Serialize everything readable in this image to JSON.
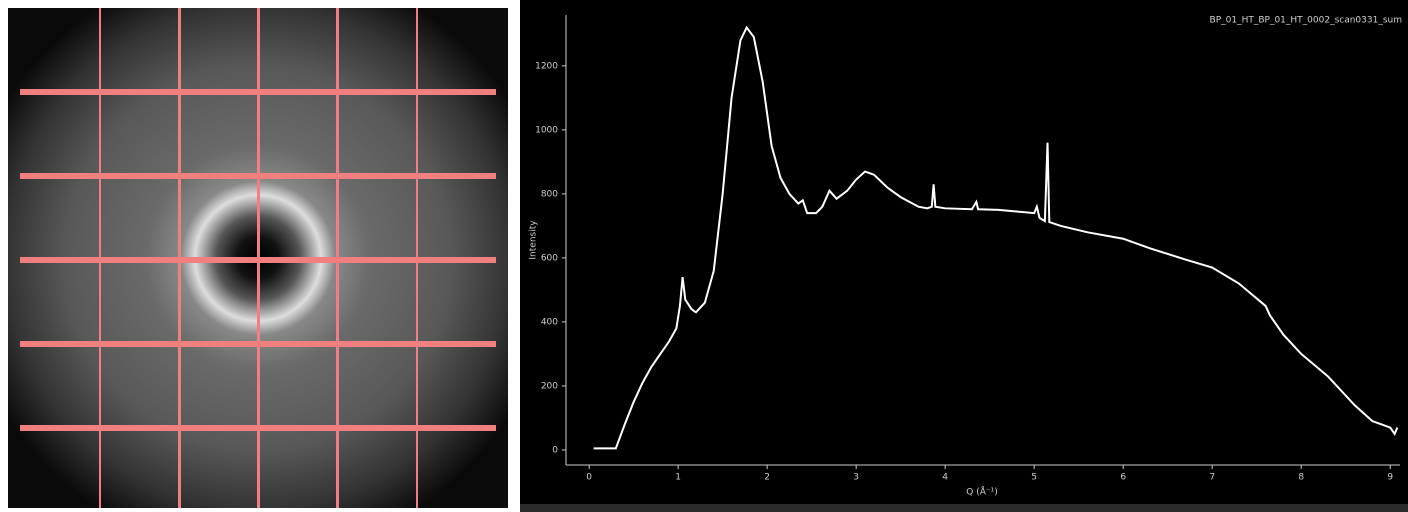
{
  "chart_data": {
    "type": "line",
    "title": "BP_01_HT_BP_01_HT_0002_scan0331_sum",
    "x_label": "Q (Å⁻¹)",
    "y_label": "Intensity",
    "xlim": [
      -0.26,
      9.11
    ],
    "ylim": [
      -47,
      1359
    ],
    "xticks": [
      0,
      1,
      2,
      3,
      4,
      5,
      6,
      7,
      8,
      9
    ],
    "yticks": [
      0,
      200,
      400,
      600,
      800,
      1000,
      1200
    ],
    "series": [
      {
        "color": "#ffffff",
        "x": [
          0.05,
          0.3,
          0.32,
          0.4,
          0.5,
          0.6,
          0.7,
          0.8,
          0.9,
          0.98,
          1.02,
          1.05,
          1.08,
          1.15,
          1.2,
          1.3,
          1.4,
          1.5,
          1.6,
          1.7,
          1.77,
          1.85,
          1.95,
          2.05,
          2.15,
          2.25,
          2.35,
          2.4,
          2.45,
          2.55,
          2.62,
          2.7,
          2.78,
          2.9,
          3.0,
          3.1,
          3.2,
          3.35,
          3.5,
          3.7,
          3.8,
          3.85,
          3.87,
          3.89,
          4.0,
          4.3,
          4.35,
          4.37,
          4.6,
          4.8,
          5.0,
          5.03,
          5.06,
          5.12,
          5.15,
          5.17,
          5.3,
          5.6,
          6.0,
          6.3,
          6.7,
          7.0,
          7.3,
          7.6,
          7.65,
          7.8,
          8.0,
          8.3,
          8.6,
          8.8,
          8.9,
          9.0,
          9.05,
          9.08
        ],
        "values": [
          5,
          5,
          20,
          80,
          150,
          210,
          260,
          300,
          340,
          380,
          450,
          540,
          470,
          440,
          430,
          460,
          560,
          800,
          1100,
          1280,
          1320,
          1290,
          1150,
          950,
          850,
          800,
          770,
          780,
          740,
          740,
          760,
          810,
          785,
          810,
          845,
          870,
          860,
          820,
          790,
          760,
          755,
          760,
          830,
          760,
          755,
          752,
          775,
          752,
          750,
          745,
          740,
          760,
          725,
          715,
          960,
          712,
          700,
          680,
          660,
          630,
          595,
          570,
          520,
          450,
          420,
          360,
          300,
          230,
          140,
          90,
          80,
          70,
          50,
          70
        ]
      }
    ]
  }
}
